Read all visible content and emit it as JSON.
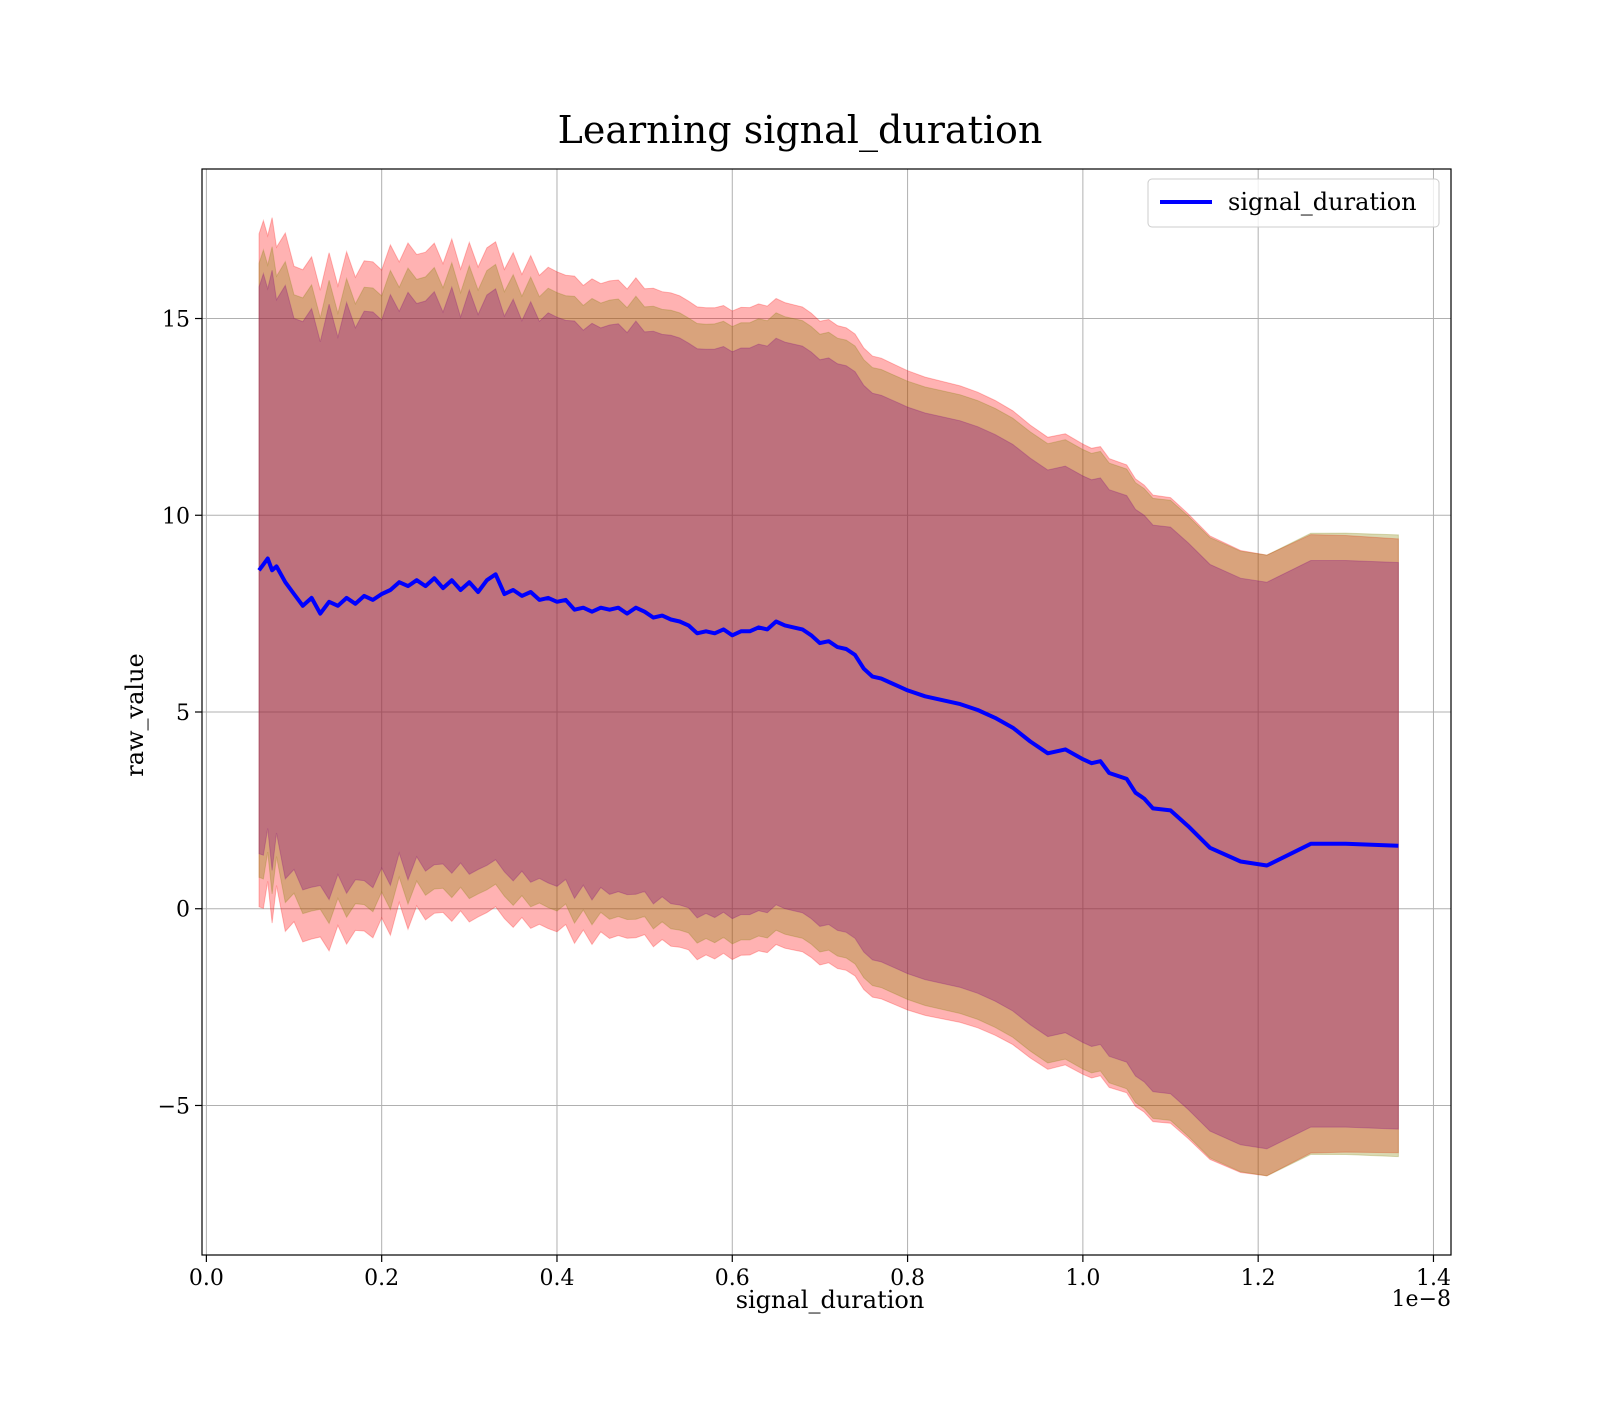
{
  "chart_data": {
    "type": "line",
    "title": "Learning signal_duration",
    "xlabel": "signal_duration",
    "ylabel": "raw_value",
    "x_offset_label": "1e−8",
    "xlim": [
      -0.005,
      1.42
    ],
    "ylim": [
      -8.8,
      18.8
    ],
    "x_unit_scale": 1e-08,
    "x_ticks": [
      0.0,
      0.2,
      0.4,
      0.6,
      0.8,
      1.0,
      1.2,
      1.4
    ],
    "x_tick_labels": [
      "0.0",
      "0.2",
      "0.4",
      "0.6",
      "0.8",
      "1.0",
      "1.2",
      "1.4"
    ],
    "y_ticks": [
      -5,
      0,
      5,
      10,
      15
    ],
    "y_tick_labels": [
      "−5",
      "0",
      "5",
      "10",
      "15"
    ],
    "grid": true,
    "legend": {
      "position": "upper-right",
      "entries": [
        "signal_duration"
      ]
    },
    "series": [
      {
        "name": "signal_duration",
        "color": "#0000ff",
        "x": [
          0.06,
          0.065,
          0.07,
          0.075,
          0.08,
          0.09,
          0.1,
          0.11,
          0.12,
          0.13,
          0.14,
          0.15,
          0.16,
          0.17,
          0.18,
          0.19,
          0.2,
          0.21,
          0.22,
          0.23,
          0.24,
          0.25,
          0.26,
          0.27,
          0.28,
          0.29,
          0.3,
          0.31,
          0.32,
          0.33,
          0.34,
          0.35,
          0.36,
          0.37,
          0.38,
          0.39,
          0.4,
          0.41,
          0.42,
          0.43,
          0.44,
          0.45,
          0.46,
          0.47,
          0.48,
          0.49,
          0.5,
          0.51,
          0.52,
          0.53,
          0.54,
          0.55,
          0.56,
          0.57,
          0.58,
          0.59,
          0.6,
          0.61,
          0.62,
          0.63,
          0.64,
          0.65,
          0.66,
          0.67,
          0.68,
          0.69,
          0.7,
          0.71,
          0.72,
          0.73,
          0.74,
          0.75,
          0.76,
          0.77,
          0.78,
          0.79,
          0.8,
          0.82,
          0.84,
          0.86,
          0.88,
          0.9,
          0.92,
          0.94,
          0.96,
          0.98,
          1.0,
          1.01,
          1.02,
          1.03,
          1.05,
          1.06,
          1.07,
          1.08,
          1.1,
          1.12,
          1.145,
          1.18,
          1.21,
          1.26,
          1.3,
          1.36
        ],
        "values": [
          8.6,
          8.75,
          8.9,
          8.6,
          8.7,
          8.3,
          8.0,
          7.7,
          7.9,
          7.5,
          7.8,
          7.7,
          7.9,
          7.75,
          7.95,
          7.85,
          8.0,
          8.1,
          8.3,
          8.2,
          8.35,
          8.2,
          8.4,
          8.15,
          8.35,
          8.1,
          8.3,
          8.05,
          8.35,
          8.5,
          8.0,
          8.1,
          7.95,
          8.05,
          7.85,
          7.9,
          7.8,
          7.85,
          7.6,
          7.65,
          7.55,
          7.65,
          7.6,
          7.65,
          7.5,
          7.65,
          7.55,
          7.4,
          7.45,
          7.35,
          7.3,
          7.2,
          7.0,
          7.05,
          7.0,
          7.1,
          6.95,
          7.05,
          7.05,
          7.15,
          7.1,
          7.3,
          7.2,
          7.15,
          7.1,
          6.95,
          6.75,
          6.8,
          6.65,
          6.6,
          6.45,
          6.1,
          5.9,
          5.85,
          5.75,
          5.65,
          5.55,
          5.4,
          5.3,
          5.2,
          5.05,
          4.85,
          4.6,
          4.25,
          3.95,
          4.05,
          3.8,
          3.7,
          3.75,
          3.45,
          3.3,
          2.95,
          2.8,
          2.55,
          2.5,
          2.1,
          1.55,
          1.2,
          1.1,
          1.65,
          1.65,
          1.6
        ]
      }
    ],
    "bands": [
      {
        "half_width_at_start": 8.55,
        "half_width_at_end": 7.8,
        "color": "#ff0000",
        "opacity": 0.3
      },
      {
        "half_width_at_start": 7.8,
        "half_width_at_end": 7.9,
        "color": "#808000",
        "opacity": 0.3
      },
      {
        "half_width_at_start": 7.2,
        "half_width_at_end": 7.2,
        "color": "#800080",
        "opacity": 0.3
      }
    ]
  }
}
